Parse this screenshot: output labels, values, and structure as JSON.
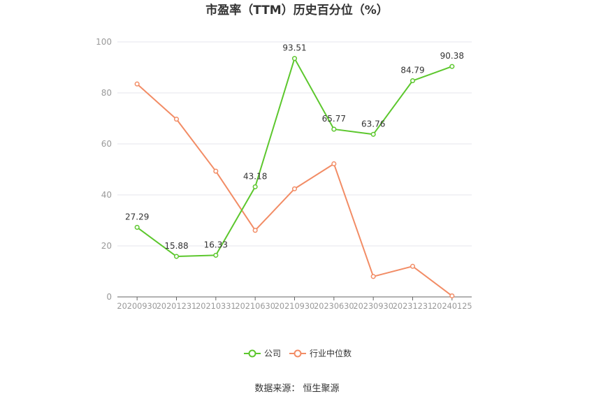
{
  "chart_data": {
    "type": "line",
    "title": "市盈率（TTM）历史百分位（%）",
    "categories": [
      "20200930",
      "20201231",
      "20210331",
      "20210630",
      "20210930",
      "20230630",
      "20230930",
      "20231231",
      "20240125"
    ],
    "ylim": [
      0,
      100
    ],
    "yticks": [
      "0",
      "20",
      "40",
      "60",
      "80",
      "100"
    ],
    "series": [
      {
        "name": "公司",
        "color": "#5cc72d",
        "values": [
          27.29,
          15.88,
          16.33,
          43.18,
          93.51,
          65.77,
          63.76,
          84.79,
          90.38
        ],
        "labels": [
          "27.29",
          "15.88",
          "16.33",
          "43.18",
          "93.51",
          "65.77",
          "63.76",
          "84.79",
          "90.38"
        ]
      },
      {
        "name": "行业中位数",
        "color": "#f28c65",
        "values": [
          83.5,
          69.7,
          49.3,
          26.1,
          42.4,
          52.2,
          8.0,
          12.0,
          0.4
        ]
      }
    ],
    "grid": true,
    "legend": "bottom-center"
  },
  "source": "数据来源：  恒生聚源"
}
